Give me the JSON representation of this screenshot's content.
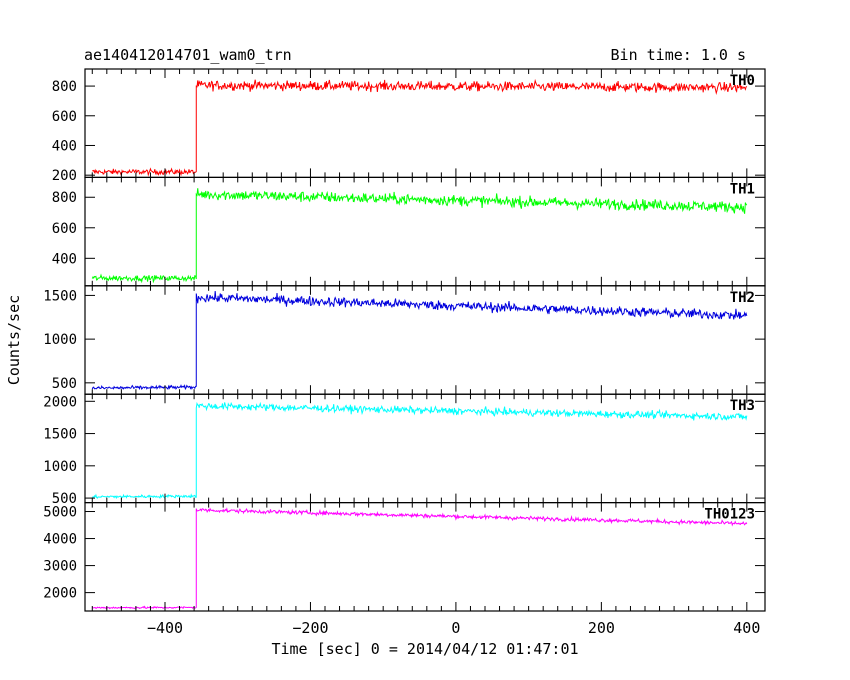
{
  "chart_data": {
    "type": "line",
    "title": "ae140412014701_wam0_trn",
    "bin_time_label": "Bin time: 1.0 s",
    "xlabel": "Time [sec] 0 = 2014/04/12 01:47:01",
    "ylabel": "Counts/sec",
    "xlim": [
      -510,
      425
    ],
    "x_ticks": [
      -400,
      -200,
      0,
      200,
      400
    ],
    "x_tick_labels": [
      "−400",
      "−200",
      "0",
      "200",
      "400"
    ],
    "grid": false,
    "bin_seconds": 1.0,
    "series": [
      {
        "name": "TH0",
        "color": "#ff0000",
        "ylim": [
          185,
          915
        ],
        "y_ticks": [
          200,
          400,
          600,
          800
        ],
        "segments": [
          {
            "x": [
              -500,
              -357
            ],
            "y": [
              222,
              222
            ],
            "noise": 18
          },
          {
            "x": [
              -357,
              400
            ],
            "y": [
              805,
              790
            ],
            "noise": 32
          }
        ]
      },
      {
        "name": "TH1",
        "color": "#00ff00",
        "ylim": [
          220,
          930
        ],
        "y_ticks": [
          400,
          600,
          800
        ],
        "segments": [
          {
            "x": [
              -500,
              -357
            ],
            "y": [
              270,
              270
            ],
            "noise": 18
          },
          {
            "x": [
              -357,
              400
            ],
            "y": [
              820,
              735
            ],
            "noise": 35
          }
        ]
      },
      {
        "name": "TH2",
        "color": "#0000dd",
        "ylim": [
          370,
          1610
        ],
        "y_ticks": [
          500,
          1000,
          1500
        ],
        "segments": [
          {
            "x": [
              -500,
              -357
            ],
            "y": [
              440,
              450
            ],
            "noise": 20
          },
          {
            "x": [
              -357,
              400
            ],
            "y": [
              1480,
              1270
            ],
            "noise": 55
          }
        ]
      },
      {
        "name": "TH3",
        "color": "#00ffff",
        "ylim": [
          430,
          2110
        ],
        "y_ticks": [
          500,
          1000,
          1500,
          2000
        ],
        "segments": [
          {
            "x": [
              -500,
              -357
            ],
            "y": [
              520,
              530
            ],
            "noise": 22
          },
          {
            "x": [
              -357,
              400
            ],
            "y": [
              1930,
              1760
            ],
            "noise": 55
          }
        ]
      },
      {
        "name": "TH0123",
        "color": "#ff00ff",
        "ylim": [
          1320,
          5330
        ],
        "y_ticks": [
          2000,
          3000,
          4000,
          5000
        ],
        "segments": [
          {
            "x": [
              -500,
              -357
            ],
            "y": [
              1440,
              1450
            ],
            "noise": 35
          },
          {
            "x": [
              -357,
              400
            ],
            "y": [
              5060,
              4550
            ],
            "noise": 70
          }
        ]
      }
    ]
  }
}
